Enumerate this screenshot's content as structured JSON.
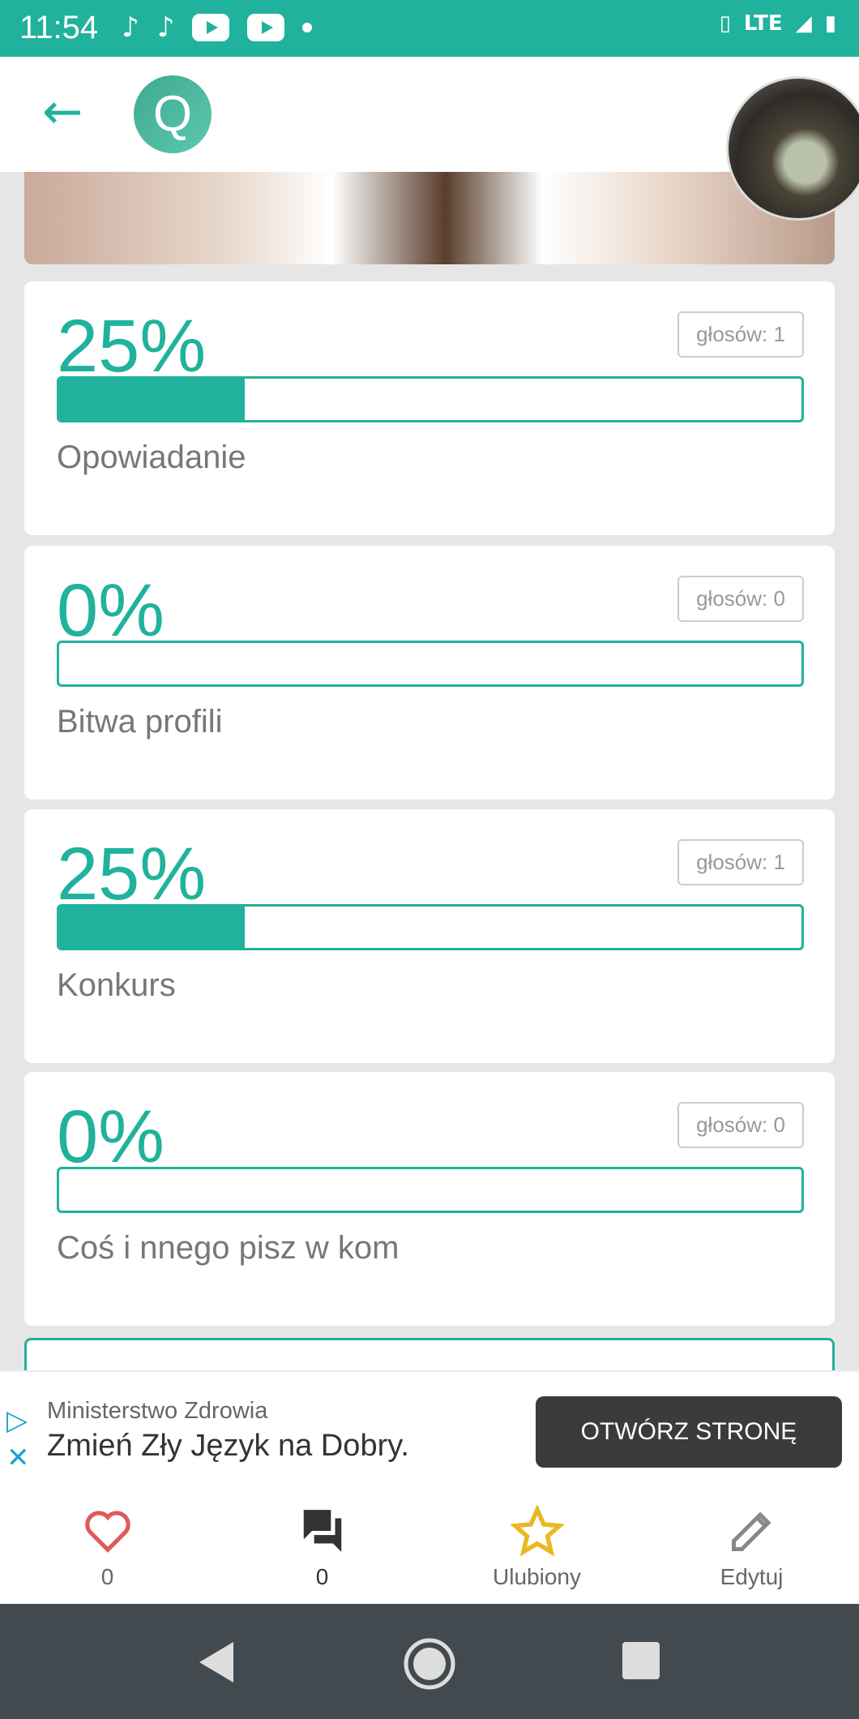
{
  "status_bar": {
    "time": "11:54",
    "network": "LTE"
  },
  "header": {
    "logo_letter": "Q"
  },
  "poll": {
    "accent": "#20b29c",
    "options": [
      {
        "percent_label": "25%",
        "percent": 25,
        "votes": "głosów: 1",
        "label": "Opowiadanie"
      },
      {
        "percent_label": "0%",
        "percent": 0,
        "votes": "głosów: 0",
        "label": "Bitwa profili"
      },
      {
        "percent_label": "25%",
        "percent": 25,
        "votes": "głosów: 1",
        "label": "Konkurs"
      },
      {
        "percent_label": "0%",
        "percent": 0,
        "votes": "głosów: 0",
        "label": "Coś i nnego pisz w kom"
      }
    ]
  },
  "ad": {
    "sponsor": "Ministerstwo Zdrowia",
    "title": "Zmień Zły Język na Dobry.",
    "button": "OTWÓRZ STRONĘ"
  },
  "bottom_bar": {
    "likes": "0",
    "comments": "0",
    "favorite": "Ulubiony",
    "edit": "Edytuj"
  }
}
